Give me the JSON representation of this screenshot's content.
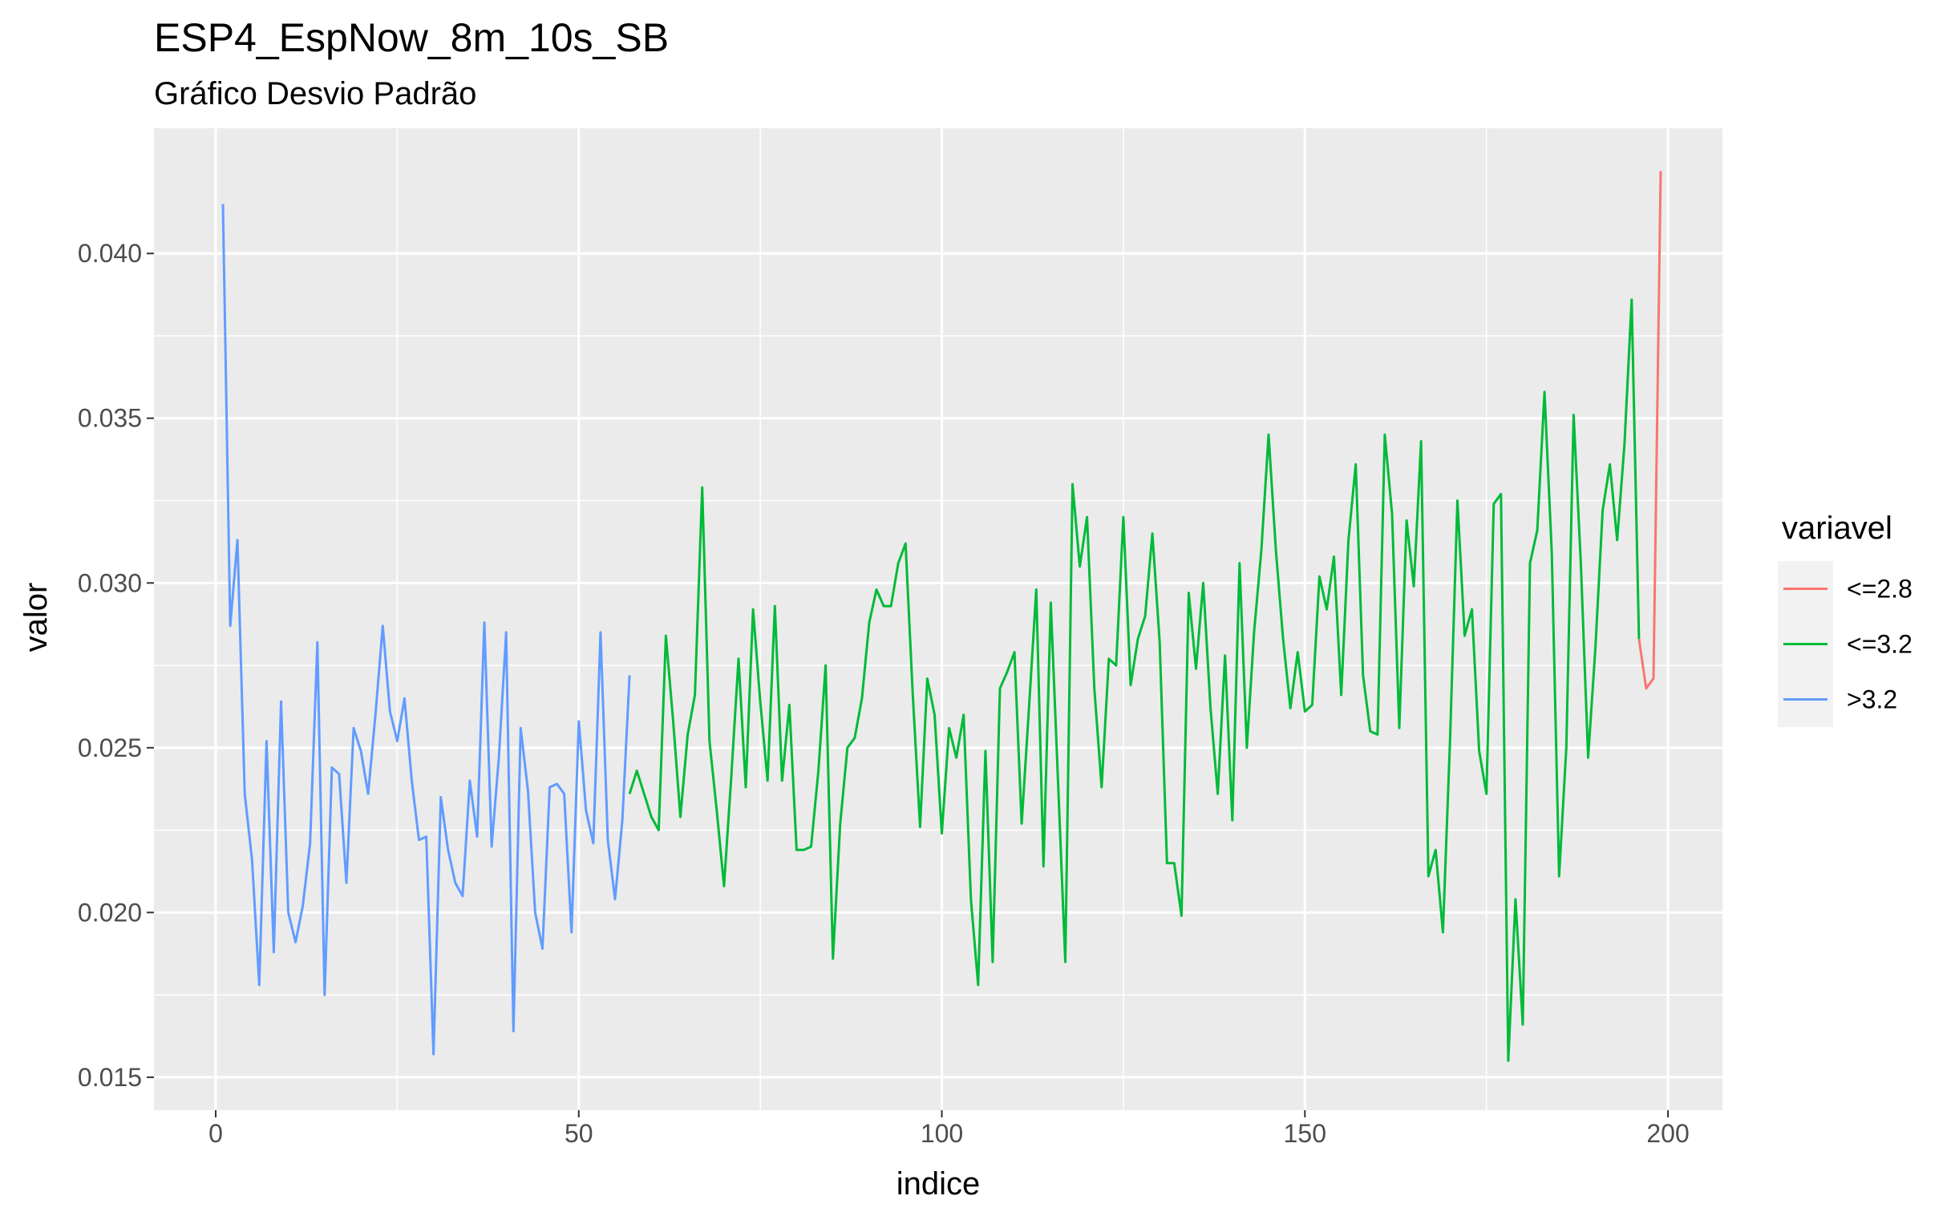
{
  "chart_data": {
    "type": "line",
    "title": "ESP4_EspNow_8m_10s_SB",
    "subtitle": "Gráfico Desvio Padrão",
    "xlabel": "indice",
    "ylabel": "valor",
    "xlim": [
      -8.5,
      207.5
    ],
    "ylim": [
      0.014,
      0.0438
    ],
    "x_ticks": [
      0,
      50,
      100,
      150,
      200
    ],
    "x_tick_labels": [
      "0",
      "50",
      "100",
      "150",
      "200"
    ],
    "y_ticks": [
      0.015,
      0.02,
      0.025,
      0.03,
      0.035,
      0.04
    ],
    "y_tick_labels": [
      "0.015",
      "0.020",
      "0.025",
      "0.030",
      "0.035",
      "0.040"
    ],
    "grid": true,
    "legend_title": "variavel",
    "legend_position": "right",
    "series": [
      {
        "name": "<=2.8",
        "color": "#F8766D",
        "x": [
          196,
          197,
          198,
          199
        ],
        "y": [
          0.0283,
          0.0268,
          0.0271,
          0.0425
        ]
      },
      {
        "name": "<=3.2",
        "color": "#00BA38",
        "x": [
          57,
          58,
          59,
          60,
          61,
          62,
          63,
          64,
          65,
          66,
          67,
          68,
          69,
          70,
          71,
          72,
          73,
          74,
          75,
          76,
          77,
          78,
          79,
          80,
          81,
          82,
          83,
          84,
          85,
          86,
          87,
          88,
          89,
          90,
          91,
          92,
          93,
          94,
          95,
          96,
          97,
          98,
          99,
          100,
          101,
          102,
          103,
          104,
          105,
          106,
          107,
          108,
          109,
          110,
          111,
          112,
          113,
          114,
          115,
          116,
          117,
          118,
          119,
          120,
          121,
          122,
          123,
          124,
          125,
          126,
          127,
          128,
          129,
          130,
          131,
          132,
          133,
          134,
          135,
          136,
          137,
          138,
          139,
          140,
          141,
          142,
          143,
          144,
          145,
          146,
          147,
          148,
          149,
          150,
          151,
          152,
          153,
          154,
          155,
          156,
          157,
          158,
          159,
          160,
          161,
          162,
          163,
          164,
          165,
          166,
          167,
          168,
          169,
          170,
          171,
          172,
          173,
          174,
          175,
          176,
          177,
          178,
          179,
          180,
          181,
          182,
          183,
          184,
          185,
          186,
          187,
          188,
          189,
          190,
          191,
          192,
          193,
          194,
          195,
          196
        ],
        "y": [
          0.0236,
          0.0243,
          0.0236,
          0.0229,
          0.0225,
          0.0284,
          0.0258,
          0.0229,
          0.0254,
          0.0266,
          0.0329,
          0.0252,
          0.0231,
          0.0208,
          0.0241,
          0.0277,
          0.0238,
          0.0292,
          0.0264,
          0.024,
          0.0293,
          0.024,
          0.0263,
          0.0219,
          0.0219,
          0.022,
          0.0243,
          0.0275,
          0.0186,
          0.0227,
          0.025,
          0.0253,
          0.0265,
          0.0288,
          0.0298,
          0.0293,
          0.0293,
          0.0306,
          0.0312,
          0.0266,
          0.0226,
          0.0271,
          0.026,
          0.0224,
          0.0256,
          0.0247,
          0.026,
          0.0204,
          0.0178,
          0.0249,
          0.0185,
          0.0268,
          0.0273,
          0.0279,
          0.0227,
          0.0262,
          0.0298,
          0.0214,
          0.0294,
          0.024,
          0.0185,
          0.033,
          0.0305,
          0.032,
          0.0268,
          0.0238,
          0.0277,
          0.0275,
          0.032,
          0.0269,
          0.0283,
          0.029,
          0.0315,
          0.0282,
          0.0215,
          0.0215,
          0.0199,
          0.0297,
          0.0274,
          0.03,
          0.0262,
          0.0236,
          0.0278,
          0.0228,
          0.0306,
          0.025,
          0.0285,
          0.031,
          0.0345,
          0.031,
          0.0283,
          0.0262,
          0.0279,
          0.0261,
          0.0263,
          0.0302,
          0.0292,
          0.0308,
          0.0266,
          0.0313,
          0.0336,
          0.0272,
          0.0255,
          0.0254,
          0.0345,
          0.0321,
          0.0256,
          0.0319,
          0.0299,
          0.0343,
          0.0211,
          0.0219,
          0.0194,
          0.0253,
          0.0325,
          0.0284,
          0.0292,
          0.0249,
          0.0236,
          0.0324,
          0.0327,
          0.0155,
          0.0204,
          0.0166,
          0.0306,
          0.0316,
          0.0358,
          0.0309,
          0.0211,
          0.025,
          0.0351,
          0.0306,
          0.0247,
          0.028,
          0.0322,
          0.0336,
          0.0313,
          0.0342,
          0.0386,
          0.0283
        ]
      },
      {
        "name": ">3.2",
        "color": "#619CFF",
        "x": [
          1,
          2,
          3,
          4,
          5,
          6,
          7,
          8,
          9,
          10,
          11,
          12,
          13,
          14,
          15,
          16,
          17,
          18,
          19,
          20,
          21,
          22,
          23,
          24,
          25,
          26,
          27,
          28,
          29,
          30,
          31,
          32,
          33,
          34,
          35,
          36,
          37,
          38,
          39,
          40,
          41,
          42,
          43,
          44,
          45,
          46,
          47,
          48,
          49,
          50,
          51,
          52,
          53,
          54,
          55,
          56,
          57
        ],
        "y": [
          0.0415,
          0.0287,
          0.0313,
          0.0236,
          0.0216,
          0.0178,
          0.0252,
          0.0188,
          0.0264,
          0.02,
          0.0191,
          0.0202,
          0.0221,
          0.0282,
          0.0175,
          0.0244,
          0.0242,
          0.0209,
          0.0256,
          0.0249,
          0.0236,
          0.026,
          0.0287,
          0.0261,
          0.0252,
          0.0265,
          0.024,
          0.0222,
          0.0223,
          0.0157,
          0.0235,
          0.0219,
          0.0209,
          0.0205,
          0.024,
          0.0223,
          0.0288,
          0.022,
          0.0247,
          0.0285,
          0.0164,
          0.0256,
          0.0237,
          0.02,
          0.0189,
          0.0238,
          0.0239,
          0.0236,
          0.0194,
          0.0258,
          0.0231,
          0.0221,
          0.0285,
          0.0222,
          0.0204,
          0.0228,
          0.0272
        ]
      }
    ]
  }
}
